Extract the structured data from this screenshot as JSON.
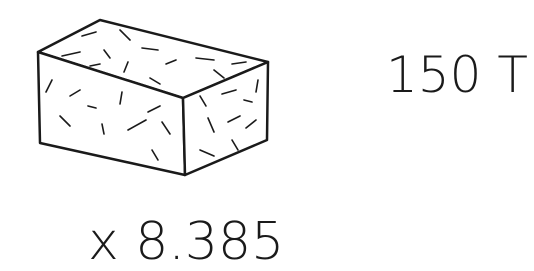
{
  "labels": {
    "weight": "150 T",
    "count": "x 8.385"
  }
}
